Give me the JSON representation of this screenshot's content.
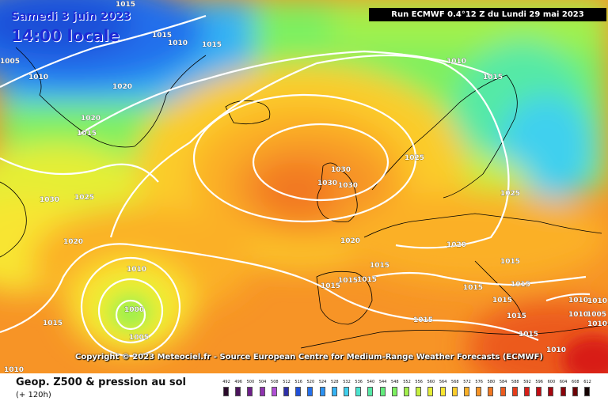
{
  "header": {
    "run_label": "Run ECMWF 0.4°12 Z du Lundi 29 mai 2023",
    "date_label": "Samedi 3 juin 2023",
    "time_label": "14:00 locale"
  },
  "footer": {
    "title": "Geop. Z500 & pression au sol",
    "subtitle": "(+ 120h)",
    "copyright": "Copyright © 2023 Meteociel.fr - Source European Centre for Medium-Range Weather Forecasts (ECMWF)"
  },
  "color_scale": {
    "labels": [
      "492",
      "496",
      "500",
      "504",
      "508",
      "512",
      "516",
      "520",
      "524",
      "528",
      "532",
      "536",
      "540",
      "544",
      "548",
      "552",
      "556",
      "560",
      "564",
      "568",
      "572",
      "576",
      "580",
      "584",
      "588",
      "592",
      "596",
      "600",
      "604",
      "608",
      "612"
    ],
    "colors": [
      "#2a0a2a",
      "#4b145c",
      "#6e1f8a",
      "#8f33b0",
      "#b04fd6",
      "#2d2fa8",
      "#1f4fd8",
      "#2470ec",
      "#2c92f2",
      "#35b2f4",
      "#3fd0ee",
      "#4be3cf",
      "#55e9a6",
      "#62ec7c",
      "#7df060",
      "#a2f04c",
      "#c6f03e",
      "#e5ee36",
      "#f8e530",
      "#fbcc2c",
      "#fbb028",
      "#f79426",
      "#f27822",
      "#ec5a1e",
      "#e53c1a",
      "#d81f18",
      "#c20d14",
      "#a8070f",
      "#8a040a",
      "#6a0206",
      "#140202"
    ]
  },
  "pressure_labels": [
    "1015",
    "1015",
    "1010",
    "1010",
    "1005",
    "1010",
    "1015",
    "1020",
    "1020",
    "1015",
    "1030",
    "1025",
    "1020",
    "1010",
    "1000",
    "1005",
    "1015",
    "1010",
    "1030",
    "1030",
    "1030",
    "1020",
    "1015",
    "1015",
    "1015",
    "1015",
    "1015",
    "1015",
    "1025",
    "1025",
    "1020",
    "1015",
    "1015",
    "1015",
    "1010",
    "1010",
    "1005",
    "1015",
    "1015",
    "1010",
    "1010",
    "1015",
    "1010"
  ],
  "map_colors": {
    "water": "#0000ff",
    "isobar": "#ffffff",
    "coast": "#000000",
    "label": "#ffffff"
  }
}
